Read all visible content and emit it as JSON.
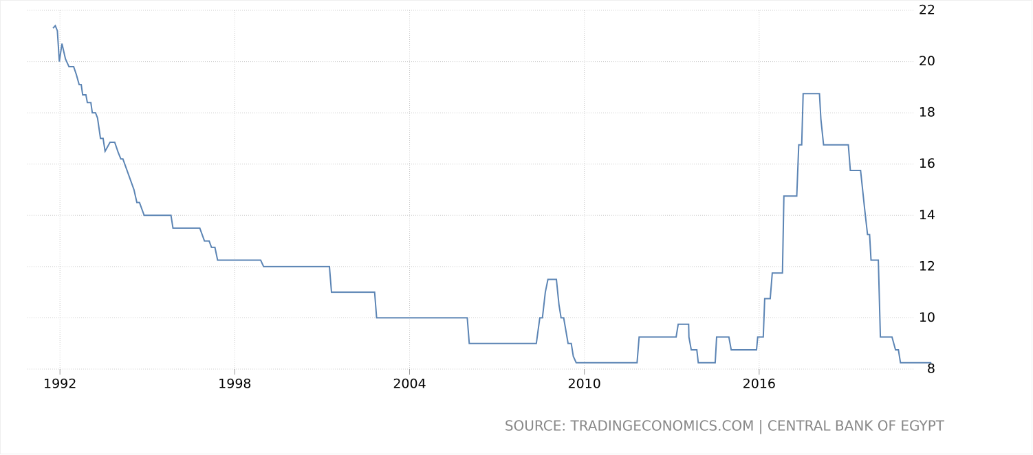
{
  "chart_data": {
    "type": "line",
    "source": "SOURCE: TRADINGECONOMICS.COM | CENTRAL BANK OF EGYPT",
    "color": "#5b84b4",
    "xlim": [
      1991.5,
      2022
    ],
    "xticks": [
      1992,
      1998,
      2004,
      2010,
      2016
    ],
    "ylim": [
      8,
      22
    ],
    "yticks": [
      8,
      10,
      12,
      14,
      16,
      18,
      20,
      22
    ],
    "grid": true,
    "x": [
      1991.76,
      1991.84,
      1991.91,
      1991.98,
      1992.07,
      1992.19,
      1992.31,
      1992.47,
      1992.56,
      1992.66,
      1992.73,
      1992.78,
      1992.89,
      1992.94,
      1993.06,
      1993.11,
      1993.22,
      1993.29,
      1993.39,
      1993.48,
      1993.55,
      1993.72,
      1993.88,
      1994.0,
      1994.09,
      1994.16,
      1994.54,
      1994.64,
      1994.73,
      1994.89,
      1995.81,
      1995.88,
      1996.8,
      1996.96,
      1997.12,
      1997.2,
      1997.32,
      1997.41,
      1998.89,
      1998.99,
      2001.25,
      2001.32,
      2002.8,
      2002.87,
      2005.98,
      2006.05,
      2008.35,
      2008.47,
      2008.56,
      2008.66,
      2008.75,
      2009.04,
      2009.13,
      2009.2,
      2009.29,
      2009.44,
      2009.55,
      2009.62,
      2009.72,
      2011.81,
      2011.88,
      2013.15,
      2013.22,
      2013.58,
      2013.59,
      2013.67,
      2013.86,
      2013.91,
      2014.49,
      2014.54,
      2014.96,
      2015.04,
      2015.91,
      2015.95,
      2016.14,
      2016.19,
      2016.38,
      2016.45,
      2016.8,
      2016.85,
      2017.29,
      2017.36,
      2017.46,
      2017.51,
      2018.07,
      2018.12,
      2018.21,
      2019.06,
      2019.13,
      2019.48,
      2019.62,
      2019.72,
      2019.79,
      2019.84,
      2020.09,
      2020.16,
      2020.56,
      2020.68,
      2020.78,
      2020.85,
      2021.91
    ],
    "values": [
      21.3,
      21.4,
      21.2,
      20.0,
      20.7,
      20.1,
      19.8,
      19.8,
      19.5,
      19.1,
      19.1,
      18.7,
      18.7,
      18.4,
      18.4,
      18.0,
      18.0,
      17.8,
      17.0,
      17.0,
      16.5,
      16.85,
      16.85,
      16.45,
      16.2,
      16.2,
      15.0,
      14.5,
      14.5,
      14.0,
      14.0,
      13.5,
      13.5,
      13.0,
      13.0,
      12.75,
      12.75,
      12.25,
      12.25,
      12.0,
      12.0,
      11.0,
      11.0,
      10.0,
      10.0,
      9.0,
      9.0,
      10.0,
      10.0,
      11.0,
      11.5,
      11.5,
      10.5,
      10.0,
      10.0,
      9.0,
      9.0,
      8.5,
      8.25,
      8.25,
      9.25,
      9.25,
      9.75,
      9.75,
      9.25,
      8.75,
      8.75,
      8.25,
      8.25,
      9.25,
      9.25,
      8.75,
      8.75,
      9.25,
      9.25,
      10.75,
      10.75,
      11.75,
      11.75,
      14.75,
      14.75,
      16.75,
      16.75,
      18.75,
      18.75,
      17.75,
      16.75,
      16.75,
      15.75,
      15.75,
      14.25,
      13.25,
      13.25,
      12.25,
      12.25,
      9.25,
      9.25,
      8.75,
      8.75,
      8.25,
      8.25
    ]
  }
}
